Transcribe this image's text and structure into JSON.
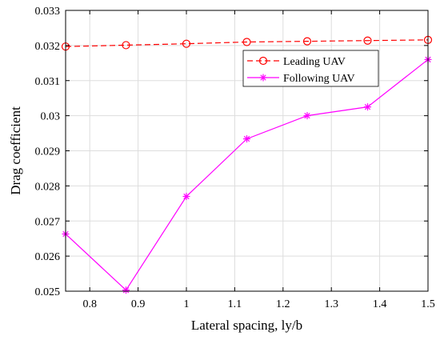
{
  "chart_data": {
    "type": "line",
    "xlabel": "Lateral spacing, ly/b",
    "ylabel": "Drag coefficient",
    "xlim": [
      0.75,
      1.5
    ],
    "ylim": [
      0.025,
      0.033
    ],
    "xticks": [
      0.8,
      0.9,
      1,
      1.1,
      1.2,
      1.3,
      1.4,
      1.5
    ],
    "xtick_labels": [
      "0.8",
      "0.9",
      "1",
      "1.1",
      "1.2",
      "1.3",
      "1.4",
      "1.5"
    ],
    "yticks": [
      0.025,
      0.026,
      0.027,
      0.028,
      0.029,
      0.03,
      0.031,
      0.032,
      0.033
    ],
    "ytick_labels": [
      "0.025",
      "0.026",
      "0.027",
      "0.028",
      "0.029",
      "0.03",
      "0.031",
      "0.032",
      "0.033"
    ],
    "grid": true,
    "legend_position": "top-right",
    "x": [
      0.75,
      0.875,
      1.0,
      1.125,
      1.25,
      1.375,
      1.5
    ],
    "series": [
      {
        "name": "Leading UAV",
        "color": "#ff0000",
        "line_style": "dashed",
        "marker": "circle",
        "values": [
          0.03197,
          0.03201,
          0.03205,
          0.0321,
          0.03212,
          0.03214,
          0.03216
        ]
      },
      {
        "name": "Following UAV",
        "color": "#ff00ff",
        "line_style": "solid",
        "marker": "asterisk",
        "values": [
          0.02663,
          0.02503,
          0.0277,
          0.02934,
          0.03,
          0.03025,
          0.0316
        ]
      }
    ]
  }
}
